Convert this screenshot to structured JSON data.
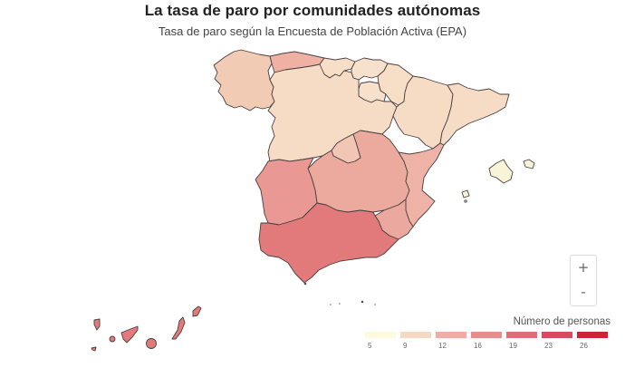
{
  "header": {
    "title": "La tasa de paro por comunidades autónomas",
    "subtitle": "Tasa de paro según la Encuesta de Población Activa (EPA)"
  },
  "zoom_controls": {
    "zoom_in_label": "+",
    "zoom_out_label": "-"
  },
  "legend": {
    "title": "Número de personas",
    "items": [
      {
        "label": "5",
        "color": "#fdfbd9"
      },
      {
        "label": "9",
        "color": "#f5d9c3"
      },
      {
        "label": "12",
        "color": "#eeaea3"
      },
      {
        "label": "16",
        "color": "#e68f8a"
      },
      {
        "label": "19",
        "color": "#df6e76"
      },
      {
        "label": "23",
        "color": "#d94b5c"
      },
      {
        "label": "26",
        "color": "#cc2335"
      }
    ]
  },
  "map": {
    "regions": [
      {
        "name": "Galicia",
        "color": "#f2cbb5"
      },
      {
        "name": "Asturias",
        "color": "#eeb1a4"
      },
      {
        "name": "Cantabria",
        "color": "#f7dec7"
      },
      {
        "name": "País Vasco",
        "color": "#f7e1cc"
      },
      {
        "name": "Navarra",
        "color": "#f7dec7"
      },
      {
        "name": "La Rioja",
        "color": "#f7e1cc"
      },
      {
        "name": "Aragón",
        "color": "#f6dcc5"
      },
      {
        "name": "Cataluña",
        "color": "#f6dcc5"
      },
      {
        "name": "Castilla y León",
        "color": "#f6dcc5"
      },
      {
        "name": "Madrid",
        "color": "#f2c6b5"
      },
      {
        "name": "Castilla-La Mancha",
        "color": "#ecaa9f"
      },
      {
        "name": "Extremadura",
        "color": "#e99893"
      },
      {
        "name": "Comunidad Valenciana",
        "color": "#eeb3a6"
      },
      {
        "name": "Murcia",
        "color": "#eba89f"
      },
      {
        "name": "Andalucía",
        "color": "#e27a7b"
      },
      {
        "name": "Islas Baleares",
        "color": "#f8f4d8"
      },
      {
        "name": "Canarias",
        "color": "#e27a7b"
      },
      {
        "name": "Ceuta",
        "color": "#555555"
      },
      {
        "name": "Melilla",
        "color": "#555555"
      }
    ]
  }
}
